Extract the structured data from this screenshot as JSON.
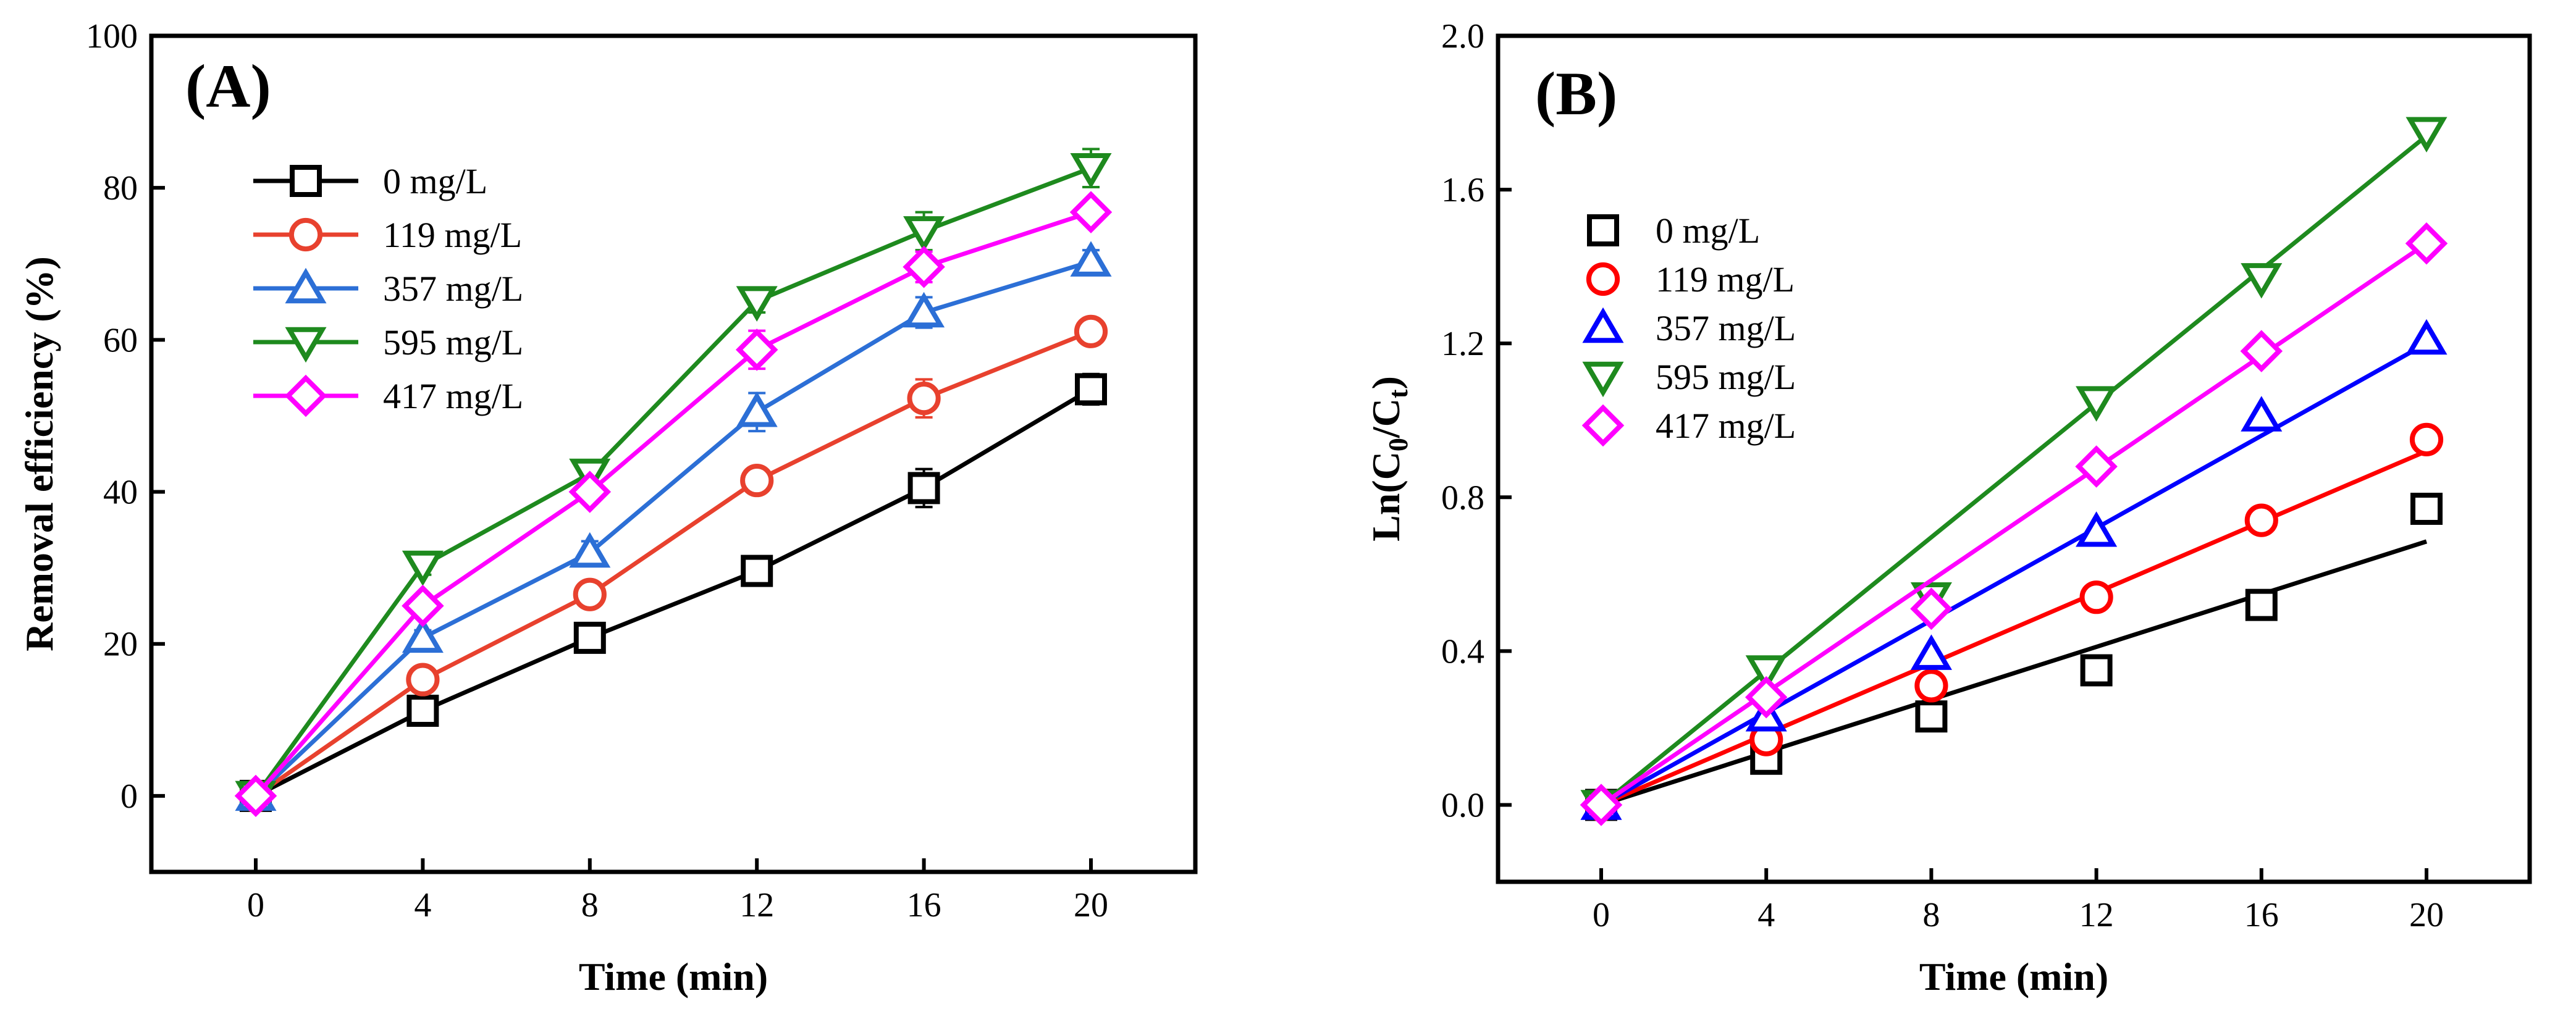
{
  "chart_data": [
    {
      "panel_label": "(A)",
      "type": "line",
      "xlabel": "Time (min)",
      "ylabel": "Removal efficiency (%)",
      "xlim": [
        -2.5,
        22.5
      ],
      "ylim": [
        -10,
        100
      ],
      "xticks": [
        0,
        4,
        8,
        12,
        16,
        20
      ],
      "yticks": [
        0,
        20,
        40,
        60,
        80,
        100
      ],
      "legend_position": "top-left",
      "x": [
        0,
        4,
        8,
        12,
        16,
        20
      ],
      "series": [
        {
          "name": "0 mg/L",
          "color": "#000000",
          "marker": "square",
          "values": [
            0,
            11.2,
            20.8,
            29.6,
            40.5,
            53.5
          ],
          "errors": [
            0,
            0.8,
            1.0,
            1.5,
            2.5,
            2.0
          ]
        },
        {
          "name": "119 mg/L",
          "color": "#e8412e",
          "marker": "circle",
          "values": [
            0,
            15.3,
            26.5,
            41.5,
            52.3,
            61.1
          ],
          "errors": [
            0,
            0.8,
            1.2,
            1.2,
            2.5,
            1.5
          ]
        },
        {
          "name": "357 mg/L",
          "color": "#2c6fd6",
          "marker": "triangle-up",
          "values": [
            0,
            20.8,
            32.0,
            50.5,
            63.6,
            70.3
          ],
          "errors": [
            0,
            1.0,
            1.5,
            2.5,
            2.0,
            1.5
          ]
        },
        {
          "name": "595 mg/L",
          "color": "#1e8a1e",
          "marker": "triangle-down",
          "values": [
            0,
            30.3,
            42.4,
            65.1,
            74.3,
            82.6
          ],
          "errors": [
            0,
            1.2,
            1.5,
            1.5,
            2.5,
            2.5
          ]
        },
        {
          "name": "417 mg/L",
          "color": "#ff00ff",
          "marker": "diamond",
          "values": [
            0,
            25.0,
            40.0,
            58.7,
            69.6,
            76.8
          ],
          "errors": [
            0,
            1.2,
            1.5,
            2.5,
            2.0,
            1.5
          ]
        }
      ]
    },
    {
      "panel_label": "(B)",
      "type": "scatter",
      "xlabel": "Time (min)",
      "ylabel": "Ln(C0/Ct)",
      "xlim": [
        -2.5,
        22.5
      ],
      "ylim": [
        -0.2,
        2.0
      ],
      "xticks": [
        0,
        4,
        8,
        12,
        16,
        20
      ],
      "yticks": [
        "0.0",
        "0.4",
        "0.8",
        "1.2",
        "1.6",
        "2.0"
      ],
      "legend_position": "top-left",
      "x": [
        0,
        4,
        8,
        12,
        16,
        20
      ],
      "series": [
        {
          "name": "0 mg/L",
          "color": "#000000",
          "marker": "square",
          "values": [
            0,
            0.12,
            0.23,
            0.35,
            0.52,
            0.77
          ],
          "fit_end": 0.685
        },
        {
          "name": "119 mg/L",
          "color": "#ff0000",
          "marker": "circle",
          "values": [
            0,
            0.17,
            0.31,
            0.54,
            0.74,
            0.95
          ],
          "fit_end": 0.92
        },
        {
          "name": "357 mg/L",
          "color": "#0000ff",
          "marker": "triangle-up",
          "values": [
            0,
            0.23,
            0.39,
            0.71,
            1.01,
            1.21
          ],
          "fit_end": 1.2
        },
        {
          "name": "595 mg/L",
          "color": "#1e8a1e",
          "marker": "triangle-down",
          "values": [
            0,
            0.35,
            0.54,
            1.05,
            1.37,
            1.75
          ],
          "fit_end": 1.74
        },
        {
          "name": "417 mg/L",
          "color": "#ff00ff",
          "marker": "diamond",
          "values": [
            0,
            0.28,
            0.51,
            0.88,
            1.18,
            1.46
          ],
          "fit_end": 1.46
        }
      ]
    }
  ]
}
